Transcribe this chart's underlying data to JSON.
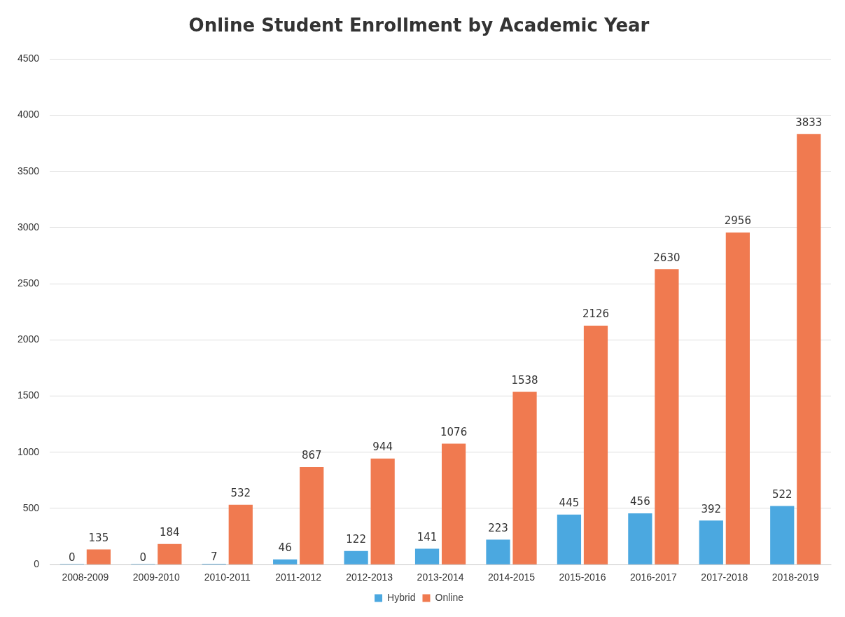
{
  "chart_data": {
    "type": "bar",
    "title": "Online Student Enrollment by Academic Year",
    "categories": [
      "2008-2009",
      "2009-2010",
      "2010-2011",
      "2011-2012",
      "2012-2013",
      "2013-2014",
      "2014-2015",
      "2015-2016",
      "2016-2017",
      "2017-2018",
      "2018-2019"
    ],
    "series": [
      {
        "name": "Hybrid",
        "color": "#4ba8e0",
        "values": [
          0,
          0,
          7,
          46,
          122,
          141,
          223,
          445,
          456,
          392,
          522
        ]
      },
      {
        "name": "Online",
        "color": "#f07a50",
        "values": [
          135,
          184,
          532,
          867,
          944,
          1076,
          1538,
          2126,
          2630,
          2956,
          3833
        ]
      }
    ],
    "ylim": [
      0,
      4500
    ],
    "yticks": [
      0,
      500,
      1000,
      1500,
      2000,
      2500,
      3000,
      3500,
      4000,
      4500
    ],
    "grid": "y",
    "legend": "bottom",
    "data_labels": true
  }
}
